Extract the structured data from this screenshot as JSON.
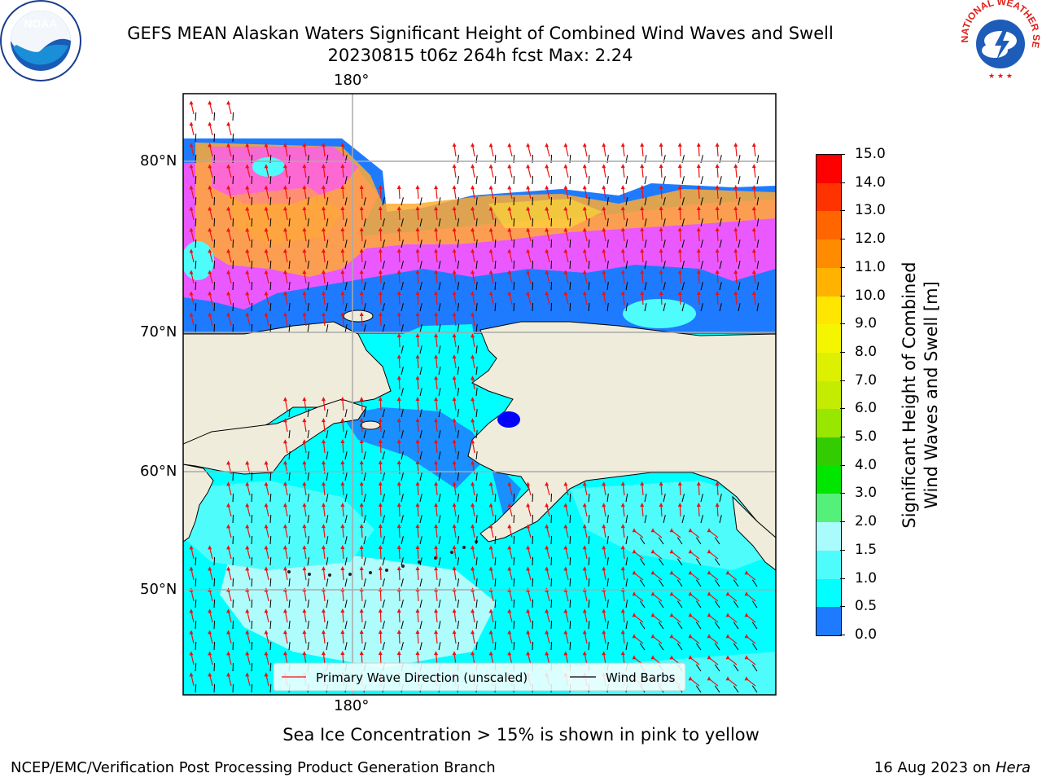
{
  "header": {
    "title_line1": "GEFS MEAN Alaskan Waters Significant Height of Combined Wind Waves and Swell",
    "title_line2": "20230815 t06z 264h fcst   Max: 2.24"
  },
  "logos": {
    "noaa_text": "NOAA",
    "nws_text": "NATIONAL WEATHER SERVICE"
  },
  "map": {
    "lon_label_top": "180°",
    "lon_label_bottom": "180°",
    "lat_labels": [
      "80°N",
      "70°N",
      "60°N",
      "50°N"
    ],
    "legend": {
      "wave_label": "Primary Wave Direction (unscaled)",
      "wind_label": "Wind Barbs"
    },
    "colors": {
      "land": "#efecdc",
      "ocean_low": "#00ffff",
      "ocean_mid": "#4ffcfc",
      "ocean_calm": "#aefcfc",
      "blue": "#1e7bff",
      "ice_pink": "#ff55ff",
      "ice_orange": "#ffaa33",
      "ice_yellow": "#ffe033",
      "wave_arrow": "#ee1111"
    }
  },
  "colorbar": {
    "label_line1": "Significant Height of Combined",
    "label_line2": "Wind Waves and Swell [m]",
    "ticks": [
      "15.0",
      "14.0",
      "13.0",
      "12.0",
      "11.0",
      "10.0",
      "9.0",
      "8.0",
      "7.0",
      "6.0",
      "5.0",
      "4.0",
      "3.0",
      "2.0",
      "1.5",
      "1.0",
      "0.5",
      "0.0"
    ],
    "colors": [
      "#ff0000",
      "#ff3300",
      "#ff6600",
      "#ff8c00",
      "#ffb300",
      "#ffe600",
      "#f5f500",
      "#ddf000",
      "#c4ec00",
      "#99e600",
      "#33cc00",
      "#00e600",
      "#55f07a",
      "#aafcfc",
      "#4ffcfc",
      "#00ffff",
      "#1e7bff",
      "#0000ff"
    ]
  },
  "footer": {
    "note": "Sea Ice Concentration > 15% is shown in pink to yellow",
    "branch": "NCEP/EMC/Verification Post Processing Product Generation Branch",
    "date": "16 Aug 2023 on",
    "host": "Hera"
  }
}
